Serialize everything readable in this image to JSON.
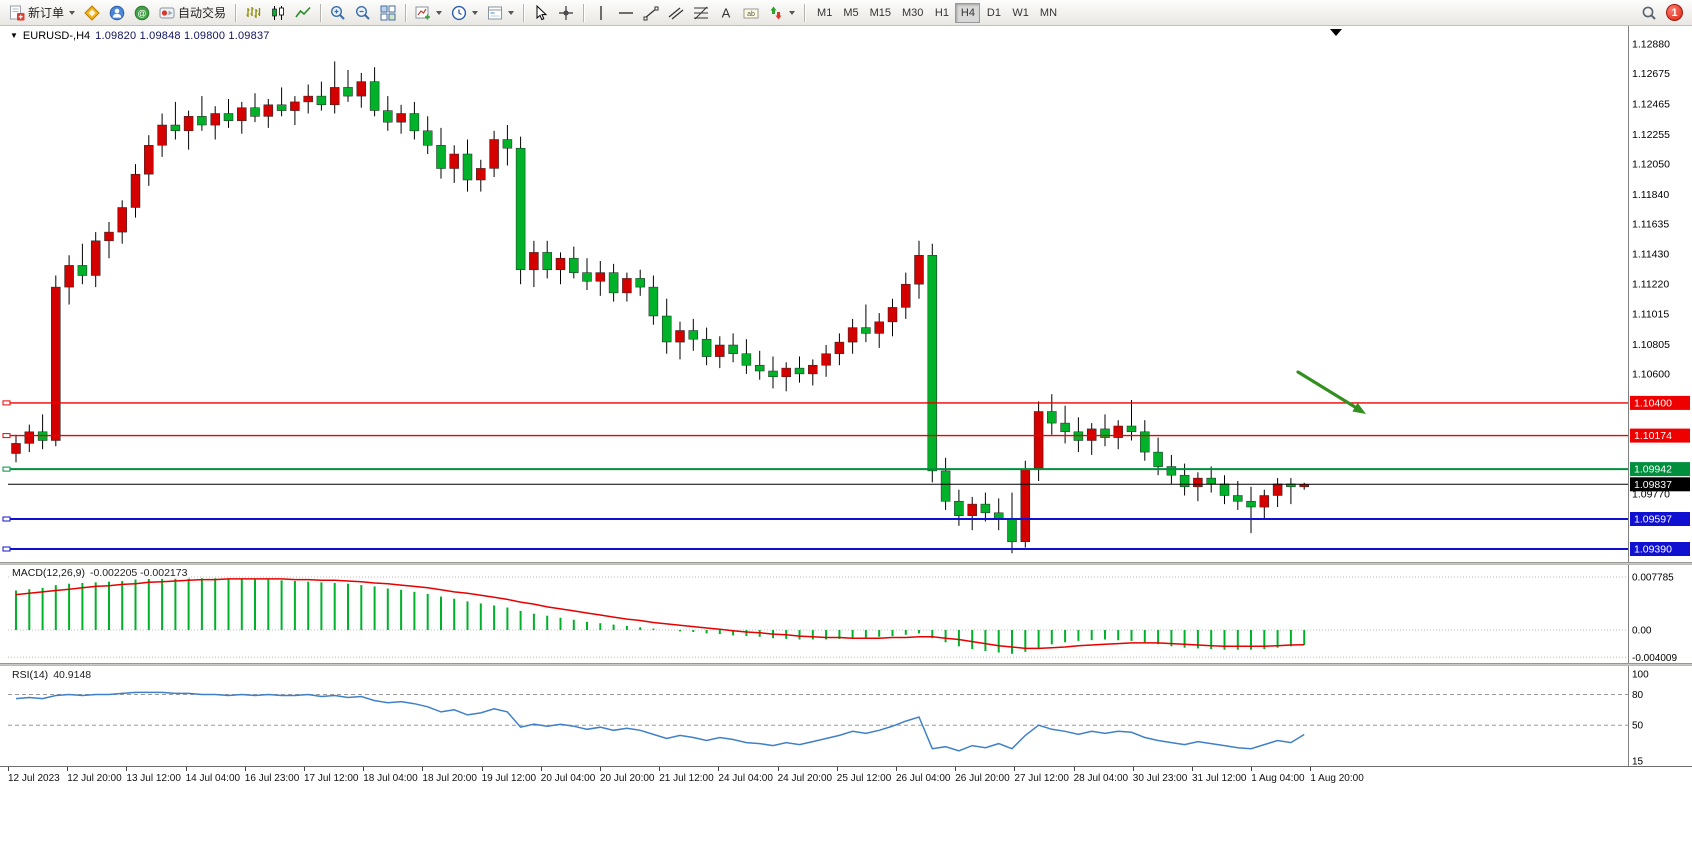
{
  "toolbar": {
    "new_order_label": "新订单",
    "autotrading_label": "自动交易",
    "timeframes": [
      "M1",
      "M5",
      "M15",
      "M30",
      "H1",
      "H4",
      "D1",
      "W1",
      "MN"
    ],
    "active_timeframe": "H4",
    "notification_count": "1"
  },
  "chart_header": {
    "symbol": "EURUSD-,H4",
    "ohlc": "1.09820 1.09848 1.09800 1.09837"
  },
  "indicator_labels": {
    "macd_name": "MACD(12,26,9)",
    "macd_values": "-0.002205 -0.002173",
    "rsi_name": "RSI(14)",
    "rsi_value": "40.9148"
  },
  "time_axis": {
    "labels": [
      "12 Jul 2023",
      "12 Jul 20:00",
      "13 Jul 12:00",
      "14 Jul 04:00",
      "16 Jul 23:00",
      "17 Jul 12:00",
      "18 Jul 04:00",
      "18 Jul 20:00",
      "19 Jul 12:00",
      "20 Jul 04:00",
      "20 Jul 20:00",
      "21 Jul 12:00",
      "24 Jul 04:00",
      "24 Jul 20:00",
      "25 Jul 12:00",
      "26 Jul 04:00",
      "26 Jul 20:00",
      "27 Jul 12:00",
      "28 Jul 04:00",
      "30 Jul 23:00",
      "31 Jul 12:00",
      "1 Aug 04:00",
      "1 Aug 20:00"
    ]
  },
  "chart_data": [
    {
      "type": "candlestick",
      "symbol": "EURUSD-",
      "timeframe": "H4",
      "bull_color": "#d40000",
      "bear_color": "#00b22a",
      "wick_color": "#000000",
      "ylim": [
        1.093,
        1.13
      ],
      "y_ticks": [
        1.1288,
        1.12675,
        1.12465,
        1.12255,
        1.1205,
        1.1184,
        1.11635,
        1.1143,
        1.1122,
        1.11015,
        1.10805,
        1.106,
        1.0977
      ],
      "levels": [
        {
          "price": 1.104,
          "label": "1.10400",
          "color": "#ee0000",
          "width": 1.4,
          "anchor": true
        },
        {
          "price": 1.10174,
          "label": "1.10174",
          "color": "#ee0000",
          "width": 1.4,
          "anchor": true
        },
        {
          "price": 1.09942,
          "label": "1.09942",
          "color": "#008f3c",
          "width": 2,
          "anchor": true
        },
        {
          "price": 1.09837,
          "label": "1.09837",
          "color": "#000000",
          "width": 1,
          "anchor": false,
          "role": "bid"
        },
        {
          "price": 1.09597,
          "label": "1.09597",
          "color": "#1010d0",
          "width": 2,
          "anchor": true
        },
        {
          "price": 1.0939,
          "label": "1.09390",
          "color": "#1010d0",
          "width": 2,
          "anchor": true
        }
      ],
      "annotation": {
        "type": "arrow",
        "color": "#338f1f",
        "points_to_price": 1.104
      },
      "ohlc": [
        [
          1.1005,
          1.1018,
          1.0999,
          1.1012
        ],
        [
          1.1012,
          1.1025,
          1.1006,
          1.102
        ],
        [
          1.102,
          1.1032,
          1.1008,
          1.1014
        ],
        [
          1.1014,
          1.1128,
          1.101,
          1.112
        ],
        [
          1.112,
          1.1142,
          1.1108,
          1.1135
        ],
        [
          1.1135,
          1.115,
          1.1122,
          1.1128
        ],
        [
          1.1128,
          1.1158,
          1.112,
          1.1152
        ],
        [
          1.1152,
          1.1165,
          1.114,
          1.1158
        ],
        [
          1.1158,
          1.118,
          1.115,
          1.1175
        ],
        [
          1.1175,
          1.1205,
          1.1168,
          1.1198
        ],
        [
          1.1198,
          1.1225,
          1.119,
          1.1218
        ],
        [
          1.1218,
          1.124,
          1.121,
          1.1232
        ],
        [
          1.1232,
          1.1248,
          1.1222,
          1.1228
        ],
        [
          1.1228,
          1.1242,
          1.1215,
          1.1238
        ],
        [
          1.1238,
          1.1252,
          1.1228,
          1.1232
        ],
        [
          1.1232,
          1.1245,
          1.1222,
          1.124
        ],
        [
          1.124,
          1.125,
          1.123,
          1.1235
        ],
        [
          1.1235,
          1.1248,
          1.1226,
          1.1244
        ],
        [
          1.1244,
          1.1254,
          1.1234,
          1.1238
        ],
        [
          1.1238,
          1.125,
          1.123,
          1.1246
        ],
        [
          1.1246,
          1.1258,
          1.1238,
          1.1242
        ],
        [
          1.1242,
          1.1252,
          1.1232,
          1.1248
        ],
        [
          1.1248,
          1.126,
          1.124,
          1.1252
        ],
        [
          1.1252,
          1.1262,
          1.1242,
          1.1246
        ],
        [
          1.1246,
          1.1276,
          1.124,
          1.1258
        ],
        [
          1.1258,
          1.127,
          1.1248,
          1.1252
        ],
        [
          1.1252,
          1.1268,
          1.1244,
          1.1262
        ],
        [
          1.1262,
          1.1272,
          1.1238,
          1.1242
        ],
        [
          1.1242,
          1.1252,
          1.1228,
          1.1234
        ],
        [
          1.1234,
          1.1246,
          1.1226,
          1.124
        ],
        [
          1.124,
          1.1248,
          1.1222,
          1.1228
        ],
        [
          1.1228,
          1.1238,
          1.1212,
          1.1218
        ],
        [
          1.1218,
          1.123,
          1.1195,
          1.1202
        ],
        [
          1.1202,
          1.1218,
          1.1192,
          1.1212
        ],
        [
          1.1212,
          1.1222,
          1.1186,
          1.1194
        ],
        [
          1.1194,
          1.1208,
          1.1186,
          1.1202
        ],
        [
          1.1202,
          1.1228,
          1.1196,
          1.1222
        ],
        [
          1.1222,
          1.1232,
          1.1204,
          1.1216
        ],
        [
          1.1216,
          1.1224,
          1.1122,
          1.1132
        ],
        [
          1.1132,
          1.1152,
          1.112,
          1.1144
        ],
        [
          1.1144,
          1.1152,
          1.1126,
          1.1132
        ],
        [
          1.1132,
          1.1144,
          1.1122,
          1.114
        ],
        [
          1.114,
          1.1148,
          1.1126,
          1.113
        ],
        [
          1.113,
          1.114,
          1.1118,
          1.1124
        ],
        [
          1.1124,
          1.1138,
          1.1114,
          1.113
        ],
        [
          1.113,
          1.1136,
          1.111,
          1.1116
        ],
        [
          1.1116,
          1.113,
          1.111,
          1.1126
        ],
        [
          1.1126,
          1.1132,
          1.1114,
          1.112
        ],
        [
          1.112,
          1.1128,
          1.1094,
          1.11
        ],
        [
          1.11,
          1.1112,
          1.1074,
          1.1082
        ],
        [
          1.1082,
          1.1096,
          1.107,
          1.109
        ],
        [
          1.109,
          1.1098,
          1.1076,
          1.1084
        ],
        [
          1.1084,
          1.1092,
          1.1066,
          1.1072
        ],
        [
          1.1072,
          1.1086,
          1.1064,
          1.108
        ],
        [
          1.108,
          1.1088,
          1.1068,
          1.1074
        ],
        [
          1.1074,
          1.1084,
          1.106,
          1.1066
        ],
        [
          1.1066,
          1.1076,
          1.1056,
          1.1062
        ],
        [
          1.1062,
          1.1072,
          1.105,
          1.1058
        ],
        [
          1.1058,
          1.1068,
          1.1048,
          1.1064
        ],
        [
          1.1064,
          1.1072,
          1.1054,
          1.106
        ],
        [
          1.106,
          1.107,
          1.1052,
          1.1066
        ],
        [
          1.1066,
          1.108,
          1.1058,
          1.1074
        ],
        [
          1.1074,
          1.1088,
          1.1066,
          1.1082
        ],
        [
          1.1082,
          1.1098,
          1.1074,
          1.1092
        ],
        [
          1.1092,
          1.1108,
          1.1082,
          1.1088
        ],
        [
          1.1088,
          1.1102,
          1.1078,
          1.1096
        ],
        [
          1.1096,
          1.1112,
          1.1086,
          1.1106
        ],
        [
          1.1106,
          1.113,
          1.1098,
          1.1122
        ],
        [
          1.1122,
          1.1152,
          1.1112,
          1.1142
        ],
        [
          1.1142,
          1.115,
          1.0985,
          1.0993
        ],
        [
          1.0993,
          1.1002,
          1.0966,
          1.0972
        ],
        [
          1.0972,
          1.098,
          1.0955,
          1.0962
        ],
        [
          1.0962,
          1.0975,
          1.0952,
          1.097
        ],
        [
          1.097,
          1.0978,
          1.0958,
          1.0964
        ],
        [
          1.0964,
          1.0974,
          1.0952,
          1.096
        ],
        [
          1.096,
          1.0978,
          1.0936,
          1.0944
        ],
        [
          1.0944,
          1.1,
          1.094,
          1.0994
        ],
        [
          1.0994,
          1.1041,
          1.0986,
          1.1034
        ],
        [
          1.1034,
          1.1046,
          1.1018,
          1.1026
        ],
        [
          1.1026,
          1.1038,
          1.1012,
          1.102
        ],
        [
          1.102,
          1.103,
          1.1006,
          1.1014
        ],
        [
          1.1014,
          1.1026,
          1.1004,
          1.1022
        ],
        [
          1.1022,
          1.1032,
          1.101,
          1.1016
        ],
        [
          1.1016,
          1.1028,
          1.1008,
          1.1024
        ],
        [
          1.1024,
          1.1042,
          1.1014,
          1.102
        ],
        [
          1.102,
          1.1028,
          1.1,
          1.1006
        ],
        [
          1.1006,
          1.1016,
          1.099,
          1.0996
        ],
        [
          1.0996,
          1.1004,
          1.0984,
          1.099
        ],
        [
          1.099,
          1.0998,
          1.0976,
          1.0982
        ],
        [
          1.0982,
          1.0992,
          1.0972,
          1.0988
        ],
        [
          1.0988,
          1.0996,
          1.0978,
          1.0984
        ],
        [
          1.0984,
          1.099,
          1.097,
          1.0976
        ],
        [
          1.0976,
          1.0986,
          1.0966,
          1.0972
        ],
        [
          1.0972,
          1.0982,
          1.095,
          1.0968
        ],
        [
          1.0968,
          1.098,
          1.096,
          1.0976
        ],
        [
          1.0976,
          1.0988,
          1.0968,
          1.0984
        ],
        [
          1.0984,
          1.0988,
          1.097,
          1.0982
        ],
        [
          1.0982,
          1.09848,
          1.098,
          1.09837
        ]
      ]
    },
    {
      "type": "bar",
      "name": "MACD(12,26,9)",
      "histogram_color": "#00b22a",
      "signal_color": "#e60000",
      "current_values": [
        -0.002205,
        -0.002173
      ],
      "axis_ticks": [
        {
          "v": 0.007785,
          "label": "0.007785"
        },
        {
          "v": 0,
          "label": "0.00"
        },
        {
          "v": -0.004009,
          "label": "-0.004009"
        }
      ],
      "values": [
        0.0058,
        0.006,
        0.0062,
        0.0066,
        0.0068,
        0.0069,
        0.007,
        0.0071,
        0.0072,
        0.0074,
        0.0075,
        0.0076,
        0.0077,
        0.0077,
        0.0076,
        0.0076,
        0.0075,
        0.0075,
        0.0074,
        0.0074,
        0.0073,
        0.0072,
        0.0071,
        0.007,
        0.0069,
        0.0068,
        0.0066,
        0.0064,
        0.0061,
        0.0059,
        0.0056,
        0.0053,
        0.0049,
        0.0046,
        0.0042,
        0.0039,
        0.0036,
        0.0033,
        0.0028,
        0.0024,
        0.0021,
        0.0018,
        0.0015,
        0.0012,
        0.001,
        0.0008,
        0.0006,
        0.0004,
        0.0002,
        0.0,
        -0.0002,
        -0.0003,
        -0.0005,
        -0.0006,
        -0.0008,
        -0.0009,
        -0.001,
        -0.0012,
        -0.0013,
        -0.0014,
        -0.0014,
        -0.0014,
        -0.0013,
        -0.0012,
        -0.0011,
        -0.001,
        -0.0009,
        -0.0007,
        -0.0005,
        -0.0012,
        -0.0018,
        -0.0024,
        -0.0028,
        -0.0031,
        -0.0033,
        -0.0035,
        -0.0032,
        -0.0026,
        -0.0021,
        -0.0018,
        -0.0016,
        -0.0015,
        -0.0014,
        -0.0015,
        -0.0016,
        -0.0018,
        -0.0021,
        -0.0024,
        -0.0026,
        -0.0027,
        -0.0028,
        -0.0029,
        -0.0029,
        -0.0029,
        -0.0028,
        -0.0026,
        -0.0024,
        -0.002205
      ],
      "signal": [
        0.0052,
        0.0054,
        0.0056,
        0.0058,
        0.006,
        0.0062,
        0.0064,
        0.0065,
        0.0067,
        0.0068,
        0.007,
        0.0071,
        0.0072,
        0.0073,
        0.0074,
        0.0074,
        0.0075,
        0.0075,
        0.0075,
        0.0075,
        0.0075,
        0.0074,
        0.0074,
        0.0073,
        0.0073,
        0.0072,
        0.0071,
        0.0069,
        0.0068,
        0.0066,
        0.0064,
        0.0062,
        0.0059,
        0.0056,
        0.0054,
        0.0051,
        0.0048,
        0.0045,
        0.0041,
        0.0038,
        0.0034,
        0.0031,
        0.0028,
        0.0025,
        0.0022,
        0.0019,
        0.0016,
        0.0014,
        0.0011,
        0.0009,
        0.0007,
        0.0005,
        0.0003,
        0.0001,
        -0.0001,
        -0.0003,
        -0.0004,
        -0.0006,
        -0.0007,
        -0.0009,
        -0.001,
        -0.0011,
        -0.0011,
        -0.0012,
        -0.0012,
        -0.0012,
        -0.0011,
        -0.0011,
        -0.001,
        -0.001,
        -0.0012,
        -0.0014,
        -0.0017,
        -0.002,
        -0.0023,
        -0.0025,
        -0.0027,
        -0.0027,
        -0.0026,
        -0.0025,
        -0.0023,
        -0.0022,
        -0.0021,
        -0.002,
        -0.0019,
        -0.0019,
        -0.0019,
        -0.002,
        -0.0021,
        -0.0022,
        -0.0023,
        -0.0024,
        -0.0024,
        -0.0024,
        -0.0024,
        -0.0023,
        -0.0022,
        -0.002173
      ]
    },
    {
      "type": "line",
      "name": "RSI(14)",
      "line_color": "#4080c8",
      "current_value": 40.9148,
      "axis_ticks": [
        {
          "v": 100,
          "label": "100",
          "line": false
        },
        {
          "v": 80,
          "label": "80",
          "line": true
        },
        {
          "v": 50,
          "label": "50",
          "line": true
        },
        {
          "v": 15,
          "label": "15",
          "line": false
        }
      ],
      "values": [
        76,
        77,
        76,
        79,
        80,
        79,
        80,
        80,
        81,
        82,
        82,
        82,
        81,
        81,
        80,
        80,
        79,
        80,
        79,
        80,
        79,
        79,
        80,
        78,
        79,
        77,
        78,
        74,
        72,
        73,
        71,
        68,
        63,
        65,
        60,
        62,
        66,
        63,
        48,
        51,
        49,
        51,
        49,
        46,
        48,
        45,
        47,
        45,
        41,
        37,
        40,
        38,
        35,
        38,
        36,
        33,
        32,
        30,
        33,
        31,
        34,
        37,
        40,
        44,
        42,
        45,
        49,
        54,
        58,
        27,
        29,
        25,
        30,
        28,
        32,
        27,
        40,
        50,
        46,
        44,
        41,
        44,
        42,
        44,
        43,
        38,
        35,
        33,
        31,
        34,
        32,
        30,
        28,
        27,
        31,
        35,
        33,
        40.9148
      ]
    }
  ]
}
